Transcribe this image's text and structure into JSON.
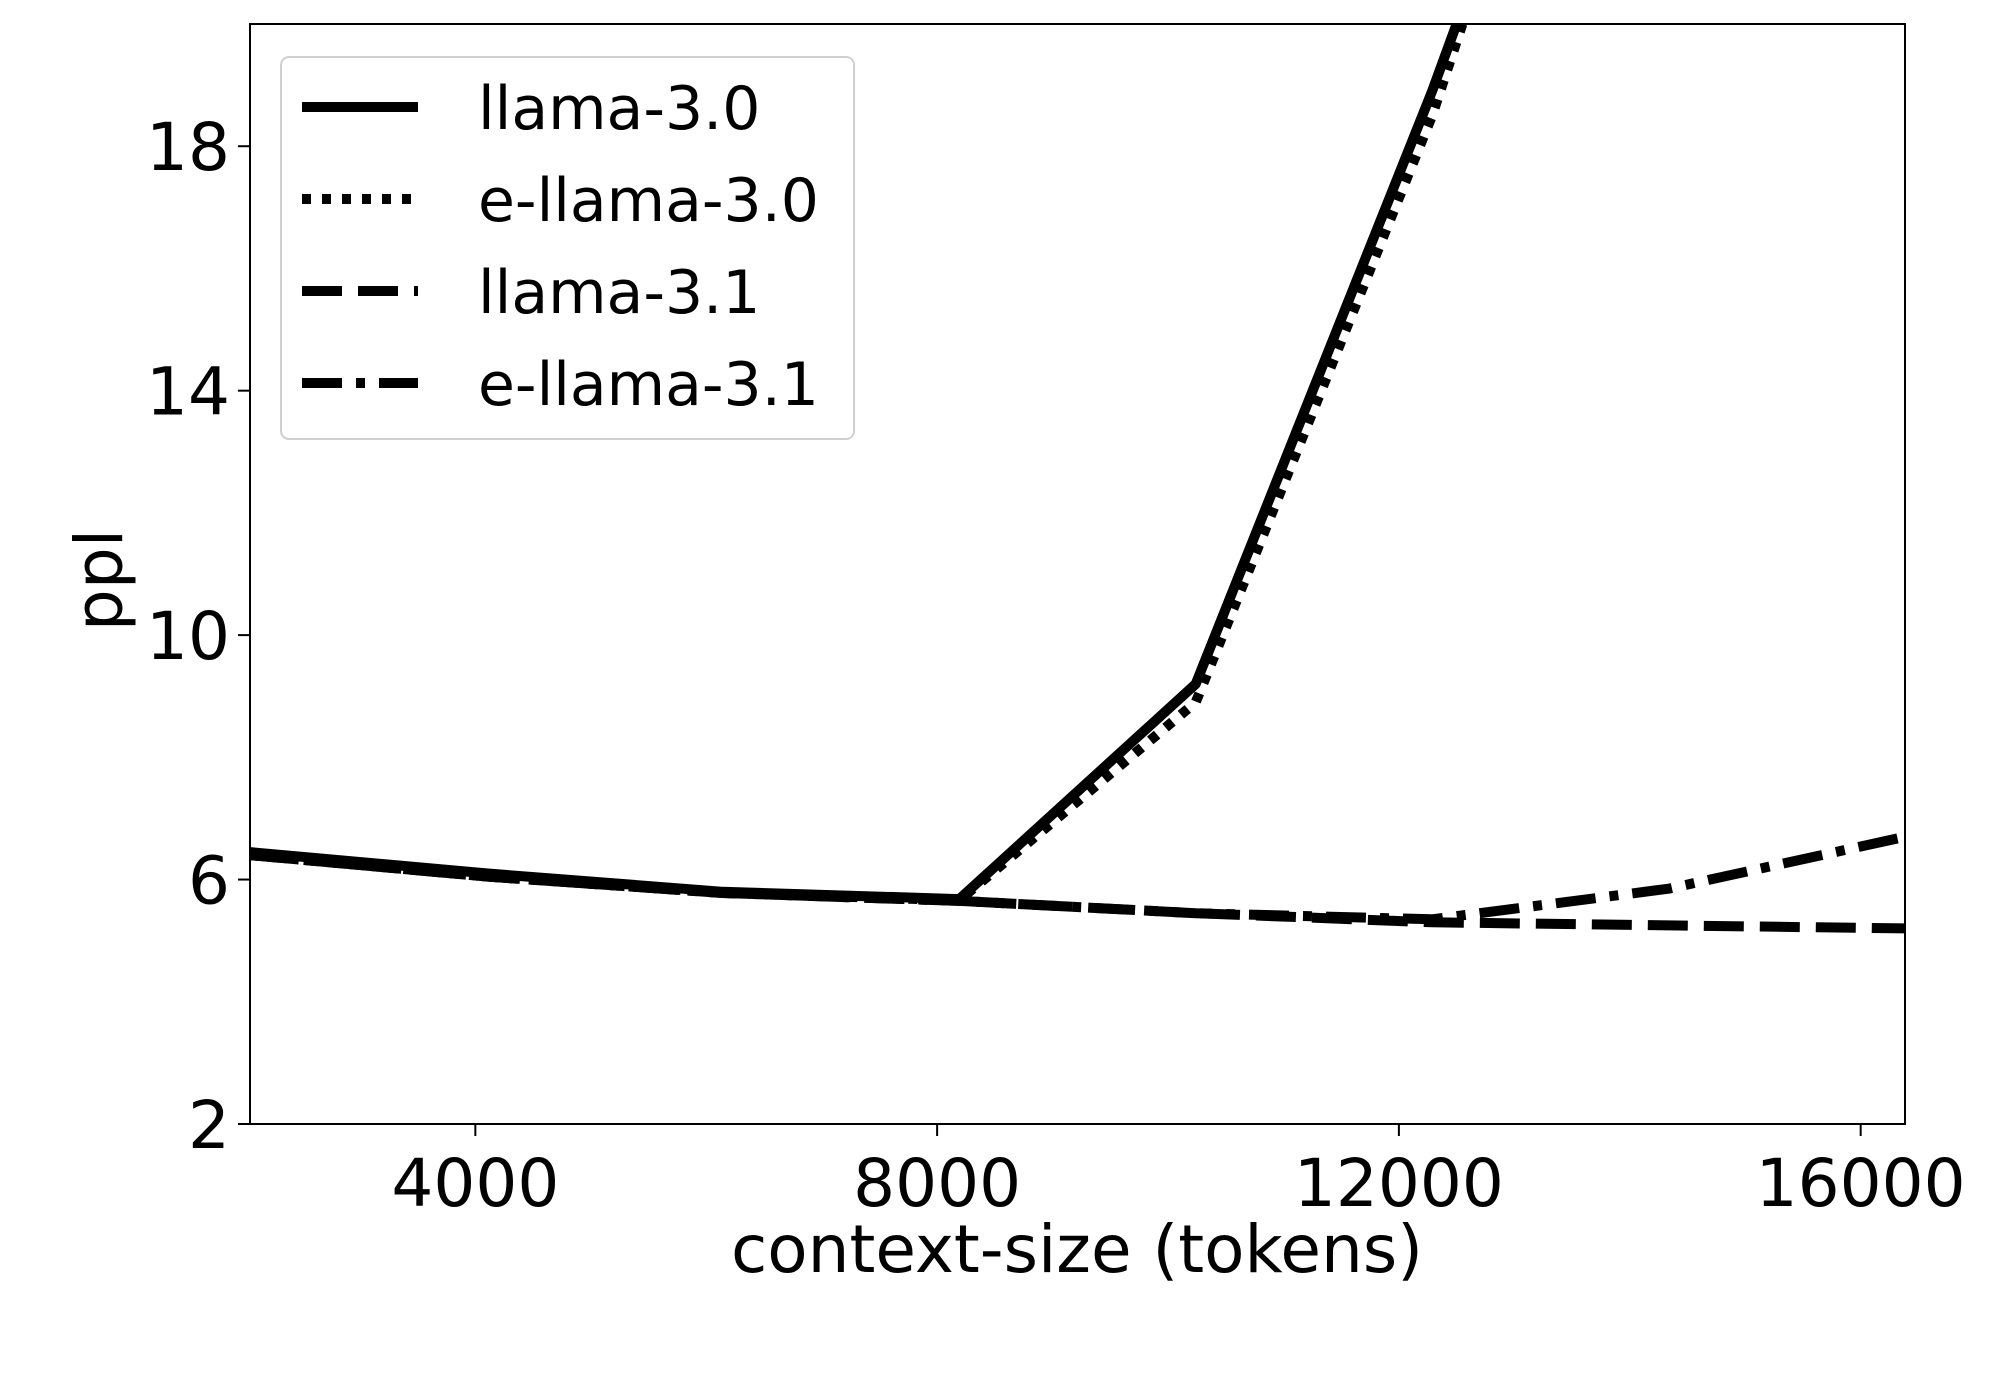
{
  "chart_data": {
    "type": "line",
    "title": "",
    "xlabel": "context-size (tokens)",
    "ylabel": "ppl",
    "xlim": [
      2048,
      16384
    ],
    "ylim": [
      2,
      20
    ],
    "xticks": [
      4000,
      8000,
      12000,
      16000
    ],
    "yticks": [
      2,
      6,
      10,
      14,
      18
    ],
    "grid": false,
    "legend_position": "top-left",
    "series": [
      {
        "name": "llama-3.0",
        "style": "solid",
        "color": "#000000",
        "x": [
          2048,
          4096,
          6144,
          8192,
          10240,
          12288,
          12500
        ],
        "y": [
          6.45,
          6.1,
          5.8,
          5.68,
          9.2,
          18.9,
          20.0
        ]
      },
      {
        "name": "e-llama-3.0",
        "style": "dotted",
        "color": "#000000",
        "x": [
          2048,
          4096,
          6144,
          8192,
          10240,
          12288,
          12550
        ],
        "y": [
          6.4,
          6.05,
          5.78,
          5.66,
          8.9,
          18.5,
          20.0
        ]
      },
      {
        "name": "llama-3.1",
        "style": "dashed",
        "color": "#000000",
        "x": [
          2048,
          4096,
          6144,
          8192,
          10240,
          12288,
          14336,
          16384
        ],
        "y": [
          6.4,
          6.05,
          5.78,
          5.65,
          5.45,
          5.3,
          5.25,
          5.2
        ]
      },
      {
        "name": "e-llama-3.1",
        "style": "dashdot",
        "color": "#000000",
        "x": [
          2048,
          4096,
          6144,
          8192,
          10240,
          12288,
          14336,
          16384
        ],
        "y": [
          6.4,
          6.05,
          5.78,
          5.65,
          5.45,
          5.35,
          5.85,
          6.7
        ]
      }
    ]
  }
}
